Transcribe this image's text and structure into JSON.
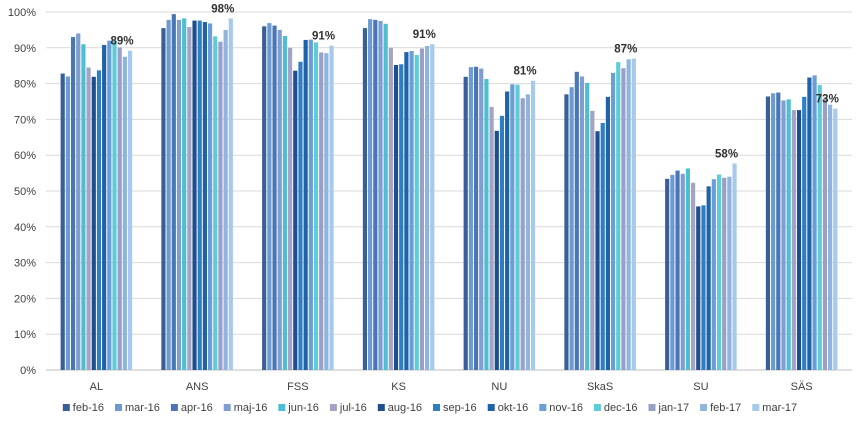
{
  "chart_data": {
    "type": "bar",
    "title": "",
    "xlabel": "",
    "ylabel": "",
    "ylim": [
      0,
      100
    ],
    "y_ticks": [
      "0%",
      "10%",
      "20%",
      "30%",
      "40%",
      "50%",
      "60%",
      "70%",
      "80%",
      "90%",
      "100%"
    ],
    "grid": true,
    "legend_position": "bottom",
    "categories": [
      "AL",
      "ANS",
      "FSS",
      "KS",
      "NU",
      "SkaS",
      "SU",
      "SÄS"
    ],
    "series": [
      {
        "name": "feb-16",
        "color": "#3A5E98",
        "values": [
          82.8,
          95.5,
          96.0,
          95.5,
          81.9,
          77.0,
          53.4,
          76.4
        ]
      },
      {
        "name": "mar-16",
        "color": "#6C9BD2",
        "values": [
          82.0,
          97.8,
          96.9,
          98.0,
          84.6,
          79.0,
          54.5,
          77.3
        ]
      },
      {
        "name": "apr-16",
        "color": "#4A76B8",
        "values": [
          93.0,
          99.4,
          96.2,
          97.8,
          84.7,
          83.3,
          55.7,
          77.5
        ]
      },
      {
        "name": "maj-16",
        "color": "#7F9ECF",
        "values": [
          94.0,
          97.8,
          95.0,
          97.5,
          84.2,
          82.0,
          54.8,
          75.3
        ]
      },
      {
        "name": "jun-16",
        "color": "#4DBFD0",
        "values": [
          91.0,
          98.2,
          93.3,
          96.7,
          81.3,
          80.2,
          56.3,
          75.6
        ]
      },
      {
        "name": "jul-16",
        "color": "#A3A3C6",
        "values": [
          84.5,
          95.8,
          90.0,
          90.0,
          73.5,
          72.4,
          52.3,
          72.6
        ]
      },
      {
        "name": "aug-16",
        "color": "#1E4E8C",
        "values": [
          81.9,
          97.6,
          83.6,
          85.2,
          66.8,
          66.7,
          45.7,
          72.6
        ]
      },
      {
        "name": "sep-16",
        "color": "#2E7EC4",
        "values": [
          83.7,
          97.6,
          86.1,
          85.4,
          71.0,
          69.0,
          46.0,
          76.3
        ]
      },
      {
        "name": "okt-16",
        "color": "#2062A8",
        "values": [
          90.8,
          97.2,
          92.2,
          88.8,
          77.8,
          76.3,
          51.3,
          81.7
        ]
      },
      {
        "name": "nov-16",
        "color": "#6A9ED6",
        "values": [
          92.0,
          96.8,
          92.3,
          89.1,
          79.8,
          83.0,
          53.3,
          82.3
        ]
      },
      {
        "name": "dec-16",
        "color": "#5DCCD8",
        "values": [
          91.9,
          93.2,
          91.5,
          88.0,
          79.7,
          86.0,
          54.6,
          79.6
        ]
      },
      {
        "name": "jan-17",
        "color": "#9A9FC8",
        "values": [
          90.1,
          91.7,
          88.7,
          89.8,
          75.9,
          84.3,
          53.7,
          75.9
        ]
      },
      {
        "name": "feb-17",
        "color": "#8FB4DE",
        "values": [
          87.5,
          95.0,
          88.5,
          90.5,
          77.0,
          86.8,
          54.0,
          74.1
        ]
      },
      {
        "name": "mar-17",
        "color": "#A6C9EC",
        "values": [
          89.2,
          98.2,
          90.6,
          91.0,
          80.8,
          87.0,
          57.7,
          73.0
        ]
      }
    ],
    "data_labels": [
      "89%",
      "98%",
      "91%",
      "91%",
      "81%",
      "87%",
      "58%",
      "73%"
    ]
  }
}
